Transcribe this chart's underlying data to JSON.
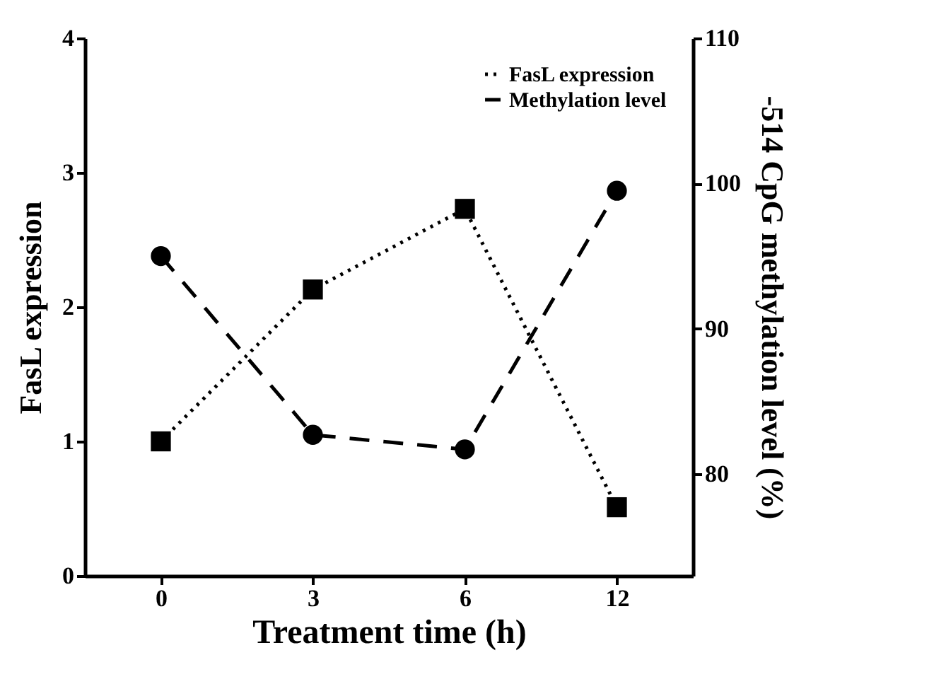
{
  "chart_data": {
    "type": "line",
    "xlabel": "Treatment time (h)",
    "ylabel": "FasL expression",
    "y2label": "-514 CpG methylation level (%)",
    "categories": [
      "0",
      "3",
      "6",
      "12"
    ],
    "series": [
      {
        "name": "FasL expression",
        "color": "#000000",
        "values": [
          1.0,
          2.13,
          2.73,
          0.51
        ],
        "marker": "square",
        "line_style": "dotted"
      },
      {
        "name": "Methylation level",
        "color": "#000000",
        "values": [
          95.0,
          82.7,
          81.7,
          99.5
        ],
        "marker": "circle",
        "line_style": "dashed",
        "axis": "y2"
      }
    ],
    "ylim": [
      0,
      4
    ],
    "yticks": [
      0,
      1,
      2,
      3,
      4
    ],
    "y2lim": [
      73,
      110
    ],
    "y2ticks": [
      80,
      90,
      100,
      110
    ],
    "grid": false,
    "legend": "top right"
  }
}
